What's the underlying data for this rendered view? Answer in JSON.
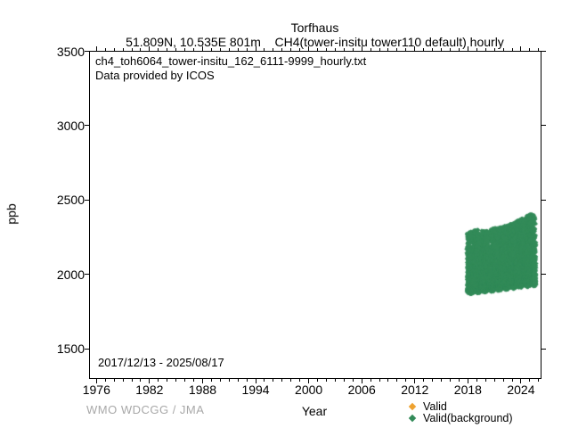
{
  "header": {
    "title": "Torfhaus",
    "subtitle": "51.809N, 10.535E 801m    CH4(tower-insitu tower110 default) hourly"
  },
  "plot": {
    "annotation_line1": "ch4_toh6064_tower-insitu_162_6111-9999_hourly.txt",
    "annotation_line2": "Data provided by ICOS",
    "date_range": "2017/12/13 - 2025/08/17",
    "xlabel": "Year",
    "ylabel": "ppb"
  },
  "footer": {
    "credit": "WMO WDCGG / JMA"
  },
  "legend": {
    "items": [
      {
        "label": "Valid",
        "color": "#eea230",
        "marker": "diamond"
      },
      {
        "label": "Valid(background)",
        "color": "#338b59",
        "marker": "diamond"
      }
    ]
  },
  "chart_data": {
    "type": "scatter",
    "title": "Torfhaus",
    "xlabel": "Year",
    "ylabel": "ppb",
    "xlim": [
      1975.2,
      2026.4
    ],
    "ylim": [
      1300,
      3500
    ],
    "grid": false,
    "ticks_direction": "out",
    "xticks_major": [
      1976,
      1982,
      1988,
      1994,
      2000,
      2006,
      2012,
      2018,
      2024
    ],
    "xminor_step_years": 1,
    "yticks_major": [
      1500,
      2000,
      2500,
      3000,
      3500
    ],
    "legend_position": "below-right",
    "series": [
      {
        "name": "Valid",
        "marker": "diamond",
        "color": "#eea230",
        "visible_points": 0
      },
      {
        "name": "Valid(background)",
        "marker": "diamond",
        "color": "#338b59",
        "sampling": "hourly",
        "time_start_decimal_year": 2017.953,
        "time_end_decimal_year": 2025.625,
        "yearly_envelope": [
          {
            "year": 2018,
            "baseline_ppb": 1875,
            "dense_top_ppb": 2100,
            "spike_max_ppb": 2280
          },
          {
            "year": 2019,
            "baseline_ppb": 1882,
            "dense_top_ppb": 2120,
            "spike_max_ppb": 2300
          },
          {
            "year": 2020,
            "baseline_ppb": 1890,
            "dense_top_ppb": 2130,
            "spike_max_ppb": 2290
          },
          {
            "year": 2021,
            "baseline_ppb": 1896,
            "dense_top_ppb": 2150,
            "spike_max_ppb": 2310
          },
          {
            "year": 2022,
            "baseline_ppb": 1903,
            "dense_top_ppb": 2170,
            "spike_max_ppb": 2320
          },
          {
            "year": 2023,
            "baseline_ppb": 1912,
            "dense_top_ppb": 2210,
            "spike_max_ppb": 2340
          },
          {
            "year": 2024,
            "baseline_ppb": 1921,
            "dense_top_ppb": 2260,
            "spike_max_ppb": 2370
          },
          {
            "year": 2025.63,
            "baseline_ppb": 1930,
            "dense_top_ppb": 2300,
            "spike_max_ppb": 2420
          }
        ],
        "seasonality": "winter spikes larger than summer",
        "event_spikes": {
          "count": 46
        }
      }
    ]
  }
}
